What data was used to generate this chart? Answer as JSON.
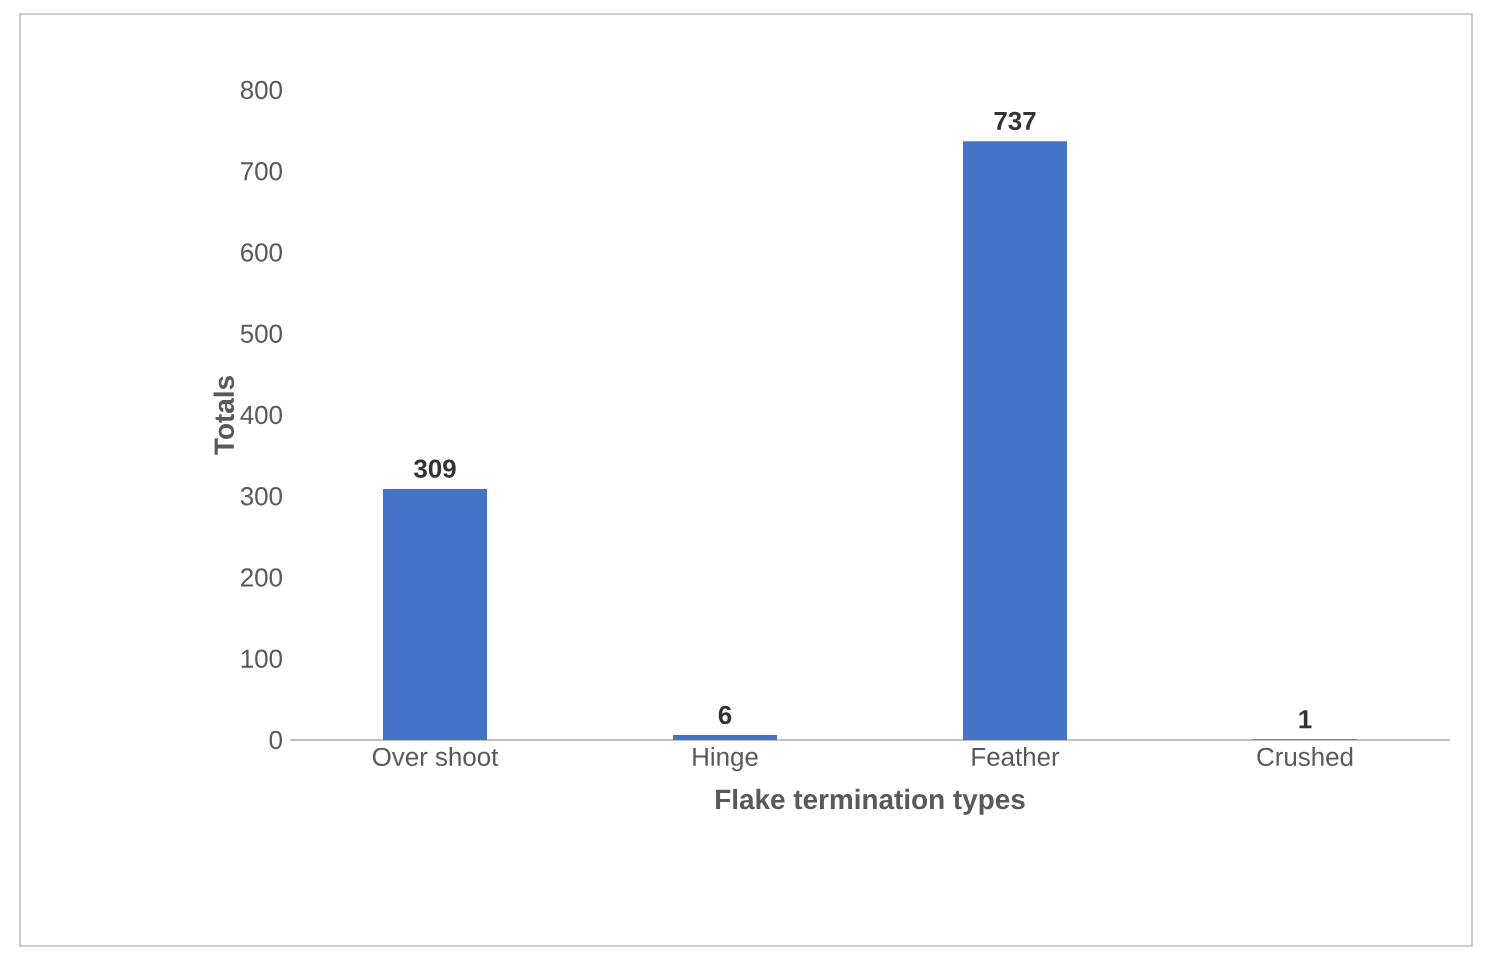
{
  "chart_data": {
    "type": "bar",
    "xlabel": "Flake termination types",
    "ylabel": "Totals",
    "categories": [
      "Over shoot",
      "Hinge",
      "Feather",
      "Crushed"
    ],
    "values": [
      309,
      6,
      737,
      1
    ],
    "color": "#4472c4",
    "ylim": [
      0,
      800
    ],
    "yticks": [
      0,
      100,
      200,
      300,
      400,
      500,
      600,
      700,
      800
    ],
    "data_labels": true,
    "grid": false
  }
}
